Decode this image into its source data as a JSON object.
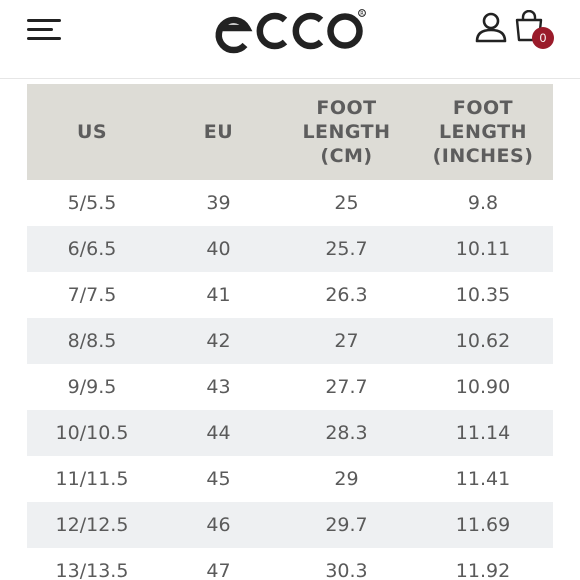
{
  "header": {
    "brand": "ecco",
    "cart_count": "0",
    "icons": {
      "menu": "hamburger-menu-icon",
      "account": "user-icon",
      "cart": "shopping-bag-icon"
    },
    "badge_color": "#9a1b2a"
  },
  "table": {
    "columns": [
      "US",
      "EU",
      "FOOT LENGTH (CM)",
      "FOOT LENGTH (INCHES)"
    ],
    "rows": [
      [
        "5/5.5",
        "39",
        "25",
        "9.8"
      ],
      [
        "6/6.5",
        "40",
        "25.7",
        "10.11"
      ],
      [
        "7/7.5",
        "41",
        "26.3",
        "10.35"
      ],
      [
        "8/8.5",
        "42",
        "27",
        "10.62"
      ],
      [
        "9/9.5",
        "43",
        "27.7",
        "10.90"
      ],
      [
        "10/10.5",
        "44",
        "28.3",
        "11.14"
      ],
      [
        "11/11.5",
        "45",
        "29",
        "11.41"
      ],
      [
        "12/12.5",
        "46",
        "29.7",
        "11.69"
      ],
      [
        "13/13.5",
        "47",
        "30.3",
        "11.92"
      ]
    ],
    "header_bg": "#dddcd6",
    "stripe_bg": "#eef0f2"
  }
}
